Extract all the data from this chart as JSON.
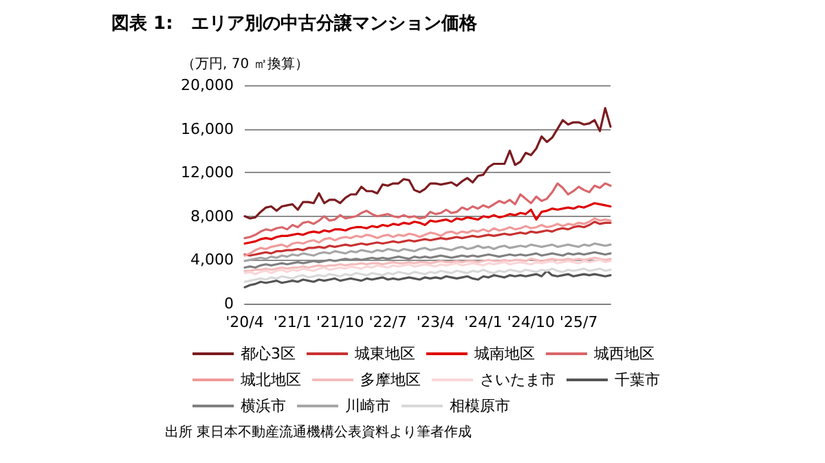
{
  "chart_data": {
    "type": "line",
    "title": "図表 1:　エリア別の中古分譲マンション価格",
    "ylabel": "（万円, 70 ㎡換算）",
    "annotations": [
      "出所 東日本不動産流通機構公表資料より筆者作成"
    ],
    "categories": [
      "'20/4",
      null,
      null,
      null,
      null,
      null,
      null,
      null,
      null,
      "'21/1",
      null,
      null,
      null,
      null,
      null,
      null,
      null,
      null,
      "'21/10",
      null,
      null,
      null,
      null,
      null,
      null,
      null,
      null,
      "'22/7",
      null,
      null,
      null,
      null,
      null,
      null,
      null,
      null,
      "'23/4",
      null,
      null,
      null,
      null,
      null,
      null,
      null,
      null,
      "'24/1",
      null,
      null,
      null,
      null,
      null,
      null,
      null,
      null,
      "'24/10",
      null,
      null,
      null,
      null,
      null,
      null,
      null,
      null,
      "'25/7",
      null,
      null,
      null,
      null,
      null,
      null
    ],
    "ylim": [
      0,
      20000
    ],
    "yticks": [
      {
        "value": 0,
        "label": "0"
      },
      {
        "value": 4000,
        "label": "4,000"
      },
      {
        "value": 8000,
        "label": "8,000"
      },
      {
        "value": 12000,
        "label": "12,000"
      },
      {
        "value": 16000,
        "label": "16,000"
      },
      {
        "value": 20000,
        "label": "20,000"
      }
    ],
    "grid": "y",
    "legend": "bottom",
    "marker": "none",
    "line_style": "solid",
    "series": [
      {
        "name": "都心3区",
        "color": "#7b1c20",
        "values": [
          8000,
          7800,
          7900,
          8400,
          8800,
          8900,
          8500,
          8900,
          9000,
          9100,
          8600,
          9300,
          9300,
          9200,
          10100,
          9200,
          9500,
          9500,
          9200,
          9700,
          10000,
          10000,
          10700,
          10300,
          10300,
          10100,
          10900,
          10800,
          11000,
          11000,
          11400,
          11300,
          10400,
          10200,
          10500,
          11000,
          11000,
          10900,
          11000,
          11100,
          10800,
          11200,
          11500,
          11100,
          11700,
          11800,
          12500,
          12800,
          12800,
          12800,
          14000,
          12700,
          13000,
          13800,
          13600,
          14200,
          15300,
          14800,
          15200,
          16000,
          16800,
          16400,
          16600,
          16600,
          16400,
          16500,
          16800,
          15800,
          17900,
          16200
        ]
      },
      {
        "name": "城東地区",
        "color": "#c83232",
        "values": [
          4500,
          4400,
          4500,
          4600,
          4700,
          4600,
          4800,
          4800,
          4900,
          4900,
          5000,
          4900,
          5100,
          5100,
          5200,
          5100,
          5300,
          5200,
          5300,
          5400,
          5300,
          5400,
          5500,
          5400,
          5500,
          5600,
          5500,
          5600,
          5700,
          5600,
          5700,
          5800,
          5700,
          5800,
          5900,
          5800,
          5900,
          6000,
          5900,
          6000,
          6100,
          6000,
          6100,
          6200,
          6100,
          6200,
          6300,
          6200,
          6300,
          6400,
          6300,
          6400,
          6500,
          6400,
          6600,
          6500,
          6600,
          6700,
          6600,
          6800,
          6900,
          6800,
          7000,
          7100,
          7000,
          7200,
          7500,
          7300,
          7400,
          7400
        ]
      },
      {
        "name": "城南地区",
        "color": "#e00000",
        "values": [
          5500,
          5600,
          5700,
          5900,
          6000,
          5900,
          6100,
          6200,
          6200,
          6300,
          6400,
          6300,
          6500,
          6600,
          6500,
          6700,
          6600,
          6800,
          6800,
          6700,
          6900,
          7000,
          7000,
          6900,
          7100,
          7000,
          7200,
          7100,
          7300,
          7200,
          7400,
          7300,
          7500,
          7400,
          7200,
          7600,
          7500,
          7600,
          7700,
          7500,
          7800,
          7700,
          7900,
          7800,
          7700,
          8000,
          7900,
          8100,
          7900,
          8000,
          8200,
          8100,
          8300,
          8200,
          8600,
          7700,
          8400,
          8500,
          8700,
          8600,
          8700,
          8800,
          8700,
          8900,
          8800,
          9000,
          9200,
          9100,
          9000,
          8900
        ]
      },
      {
        "name": "城西地区",
        "color": "#d9666a",
        "values": [
          6000,
          6100,
          6300,
          6600,
          6800,
          6700,
          6900,
          7000,
          6800,
          7200,
          7000,
          7400,
          7500,
          7300,
          7600,
          8000,
          7600,
          7700,
          8100,
          7800,
          7900,
          8000,
          8300,
          8500,
          8200,
          8000,
          8100,
          8200,
          8000,
          7900,
          8100,
          7900,
          8000,
          7800,
          7900,
          8400,
          8200,
          8300,
          8600,
          8300,
          8400,
          8800,
          8600,
          8900,
          8700,
          9000,
          8800,
          9100,
          9400,
          9200,
          9500,
          9100,
          10000,
          9600,
          9200,
          9800,
          9400,
          9600,
          10200,
          11000,
          10600,
          10000,
          10300,
          10700,
          10400,
          10200,
          10800,
          10600,
          11000,
          10800
        ]
      },
      {
        "name": "城北地区",
        "color": "#f09a9a",
        "values": [
          4400,
          4600,
          4900,
          5100,
          5000,
          5200,
          5300,
          5400,
          5200,
          5500,
          5600,
          5500,
          5700,
          5800,
          5600,
          5900,
          6000,
          5800,
          6000,
          6100,
          6000,
          6200,
          6100,
          6300,
          6200,
          6000,
          6200,
          6300,
          6100,
          6300,
          6200,
          6400,
          6300,
          6100,
          6300,
          6500,
          6400,
          6200,
          6500,
          6600,
          6400,
          6600,
          6500,
          6700,
          6600,
          6800,
          6600,
          6900,
          6700,
          6800,
          7000,
          6800,
          6900,
          7100,
          6900,
          7000,
          7200,
          7000,
          7100,
          7300,
          7100,
          7300,
          7200,
          7400,
          7300,
          7500,
          7800,
          7600,
          7700,
          7600
        ]
      },
      {
        "name": "多摩地区",
        "color": "#f4bcbc",
        "values": [
          3000,
          3000,
          3100,
          3100,
          3200,
          3100,
          3200,
          3300,
          3200,
          3300,
          3300,
          3400,
          3300,
          3400,
          3500,
          3400,
          3500,
          3500,
          3600,
          3500,
          3600,
          3600,
          3700,
          3600,
          3700,
          3700,
          3600,
          3700,
          3800,
          3700,
          3700,
          3800,
          3700,
          3800,
          3800,
          3700,
          3800,
          3900,
          3800,
          3800,
          3900,
          3800,
          3900,
          3900,
          3800,
          3900,
          4000,
          3900,
          3900,
          4000,
          3900,
          4000,
          4000,
          3900,
          4100,
          4000,
          3900,
          4000,
          4100,
          4000,
          4000,
          4100,
          4000,
          4100,
          4000,
          4100,
          4200,
          4100,
          4000,
          4100
        ]
      },
      {
        "name": "さいたま市",
        "color": "#fad6d8",
        "values": [
          2800,
          2900,
          2700,
          2900,
          3000,
          2800,
          3000,
          3100,
          2900,
          3100,
          3000,
          3200,
          3100,
          3000,
          3200,
          3300,
          3100,
          3200,
          3300,
          3200,
          3400,
          3300,
          3200,
          3400,
          3300,
          3500,
          3400,
          3300,
          3500,
          3400,
          3500,
          3600,
          3400,
          3500,
          3600,
          3500,
          3400,
          3600,
          3500,
          3600,
          3700,
          3500,
          3600,
          3700,
          3600,
          3500,
          3700,
          3600,
          3700,
          3800,
          3600,
          3700,
          3800,
          3700,
          3600,
          3800,
          3700,
          3800,
          3900,
          3700,
          3800,
          3900,
          3800,
          3700,
          3900,
          3800,
          3900,
          4000,
          3800,
          3900
        ]
      },
      {
        "name": "千葉市",
        "color": "#555555",
        "values": [
          1500,
          1700,
          1800,
          2000,
          1900,
          2000,
          2100,
          1900,
          2000,
          2100,
          2000,
          2200,
          2100,
          2000,
          2200,
          2100,
          2200,
          2300,
          2100,
          2200,
          2300,
          2200,
          2100,
          2300,
          2200,
          2300,
          2400,
          2200,
          2300,
          2200,
          2300,
          2400,
          2300,
          2200,
          2400,
          2300,
          2400,
          2300,
          2500,
          2400,
          2300,
          2400,
          2500,
          2300,
          2200,
          2500,
          2400,
          2600,
          2500,
          2400,
          2600,
          2500,
          2600,
          2500,
          2600,
          2700,
          2500,
          3000,
          2600,
          2500,
          2600,
          2700,
          2500,
          2600,
          2700,
          2600,
          2700,
          2600,
          2500,
          2600
        ]
      },
      {
        "name": "横浜市",
        "color": "#808080",
        "values": [
          3300,
          3400,
          3300,
          3500,
          3600,
          3500,
          3600,
          3700,
          3600,
          3700,
          3800,
          3700,
          3800,
          3900,
          3800,
          3900,
          4000,
          3900,
          4000,
          4100,
          4000,
          4100,
          4000,
          4100,
          4200,
          4100,
          4200,
          4100,
          4200,
          4300,
          4200,
          4100,
          4300,
          4200,
          4300,
          4200,
          4300,
          4400,
          4300,
          4200,
          4300,
          4400,
          4300,
          4400,
          4300,
          4400,
          4500,
          4400,
          4300,
          4400,
          4500,
          4400,
          4500,
          4400,
          4500,
          4600,
          4400,
          4500,
          4600,
          4500,
          4400,
          4600,
          4500,
          4600,
          4500,
          4600,
          4700,
          4600,
          4500,
          4600
        ]
      },
      {
        "name": "川崎市",
        "color": "#a6a6a6",
        "values": [
          3900,
          4000,
          4100,
          4200,
          4100,
          4300,
          4200,
          4400,
          4300,
          4500,
          4400,
          4600,
          4500,
          4400,
          4600,
          4700,
          4600,
          4800,
          4700,
          4600,
          4800,
          4700,
          4900,
          4800,
          4700,
          4900,
          4800,
          5000,
          4900,
          4800,
          5000,
          4900,
          4800,
          5000,
          5100,
          4900,
          5000,
          5100,
          5000,
          4900,
          5100,
          5200,
          5000,
          5100,
          5300,
          5100,
          5200,
          5000,
          5200,
          5300,
          5100,
          5200,
          5300,
          5200,
          5400,
          5300,
          5200,
          5300,
          5400,
          5200,
          5300,
          5400,
          5300,
          5200,
          5400,
          5300,
          5500,
          5400,
          5300,
          5400
        ]
      },
      {
        "name": "相模原市",
        "color": "#d9d9d9",
        "values": [
          2000,
          2100,
          2200,
          2300,
          2200,
          2400,
          2300,
          2500,
          2400,
          2300,
          2500,
          2600,
          2400,
          2500,
          2600,
          2500,
          2700,
          2600,
          2500,
          2700,
          2600,
          2800,
          2700,
          2600,
          2800,
          2700,
          2600,
          2800,
          2700,
          2900,
          2800,
          2700,
          2900,
          2800,
          2700,
          2900,
          2800,
          3000,
          2900,
          2800,
          3000,
          2900,
          2800,
          3000,
          2900,
          3100,
          2900,
          2800,
          3000,
          2900,
          3100,
          3000,
          2900,
          3100,
          3000,
          2900,
          3100,
          3000,
          3200,
          3000,
          2900,
          3100,
          3000,
          3100,
          3200,
          3000,
          3100,
          3200,
          3000,
          3100
        ]
      }
    ]
  }
}
